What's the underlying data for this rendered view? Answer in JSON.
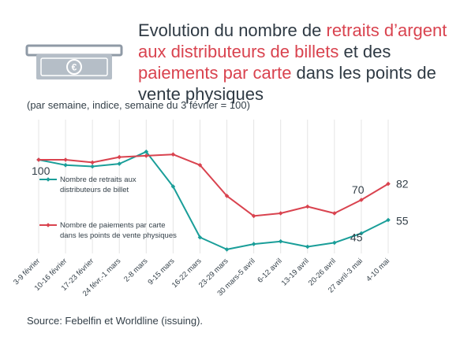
{
  "title": {
    "p1": "Evolution du nombre de ",
    "h1": "retraits d’argent aux distributeurs de billets",
    "p2": " et des ",
    "h2": "paiements par carte",
    "p3": " dans les points de vente physiques"
  },
  "subtitle": "(par semaine, indice, semaine du 3 février = 100)",
  "source": "Source: Febelfin et Worldline (issuing).",
  "icon": "cash-withdrawal-icon",
  "colors": {
    "withdrawals": "#1a9e99",
    "payments": "#d9434f",
    "grid": "#e4e4e4",
    "highlight": "#d9434f"
  },
  "chart_data": {
    "type": "line",
    "categories": [
      "3-9 février",
      "10-16 février",
      "17-23 février",
      "24 févr.-1 mars",
      "2-8 mars",
      "9-15 mars",
      "16-22 mars",
      "23-29 mars",
      "30 mars-5 avril",
      "6-12 avril",
      "13-19 avril",
      "20-26 avril",
      "27 avril-3 mai",
      "4-10 mai"
    ],
    "ylim": [
      30,
      130
    ],
    "grid": "vertical",
    "legend": "left",
    "series": [
      {
        "name": "Nombre de retraits aux distributeurs de billet",
        "legend_lines": [
          "Nombre de retraits aux",
          "distributeurs de billet"
        ],
        "color": "#1a9e99",
        "values": [
          100,
          96,
          95,
          97,
          106,
          80,
          42,
          33,
          37,
          39,
          35,
          38,
          45,
          55
        ]
      },
      {
        "name": "Nombre de paiements par carte dans les points de vente physiques",
        "legend_lines": [
          "Nombre de paiements par carte",
          "dans les points de vente physiques"
        ],
        "color": "#d9434f",
        "values": [
          100,
          100,
          98,
          102,
          103,
          104,
          96,
          73,
          58,
          60,
          65,
          60,
          70,
          82
        ]
      }
    ],
    "data_labels": [
      {
        "text": "100",
        "series": 0,
        "index": 0
      },
      {
        "text": "82",
        "series": 1,
        "index": 13
      },
      {
        "text": "70",
        "series": 1,
        "index": 12
      },
      {
        "text": "55",
        "series": 0,
        "index": 13
      },
      {
        "text": "45",
        "series": 0,
        "index": 12
      }
    ]
  }
}
